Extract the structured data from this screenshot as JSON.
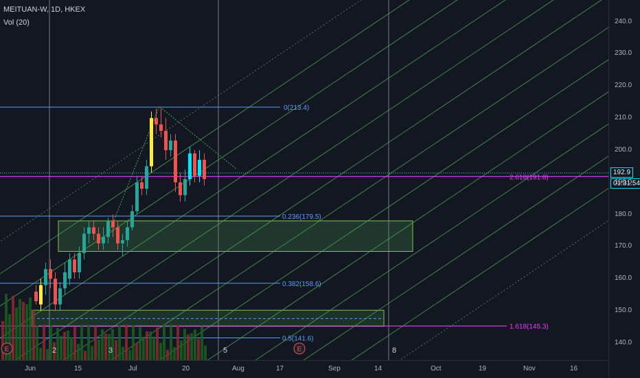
{
  "header": {
    "symbol": "MEITUAN-W, 1D, HKEX",
    "indicator": "Vol (20)"
  },
  "price_axis": {
    "ticks": [
      "240.0",
      "230.0",
      "220.0",
      "210.0",
      "200.0",
      "190.0",
      "180.0",
      "170.0",
      "160.0",
      "150.0",
      "140.0"
    ],
    "last_price": "192.9",
    "countdown": "01:31:54"
  },
  "time_axis": {
    "ticks": [
      "Jun",
      "15",
      "Jul",
      "20",
      "Aug",
      "17",
      "Sep",
      "14",
      "Oct",
      "19",
      "Nov",
      "16"
    ]
  },
  "fib_levels": [
    {
      "label": "0(213.4)",
      "color": "#5b9cf6"
    },
    {
      "label": "0.236(179.5)",
      "color": "#5b9cf6"
    },
    {
      "label": "0.382(158.6)",
      "color": "#5b9cf6"
    },
    {
      "label": "0.5(141.6)",
      "color": "#5b9cf6"
    },
    {
      "label": "2.618(191.8)",
      "color": "#e040fb"
    },
    {
      "label": "1.618(145.3)",
      "color": "#e040fb"
    }
  ],
  "wave_labels": [
    "2",
    "3",
    "5",
    "8"
  ],
  "event_markers": [
    "E",
    "E"
  ],
  "colors": {
    "up": "#26a69a",
    "down": "#ef5350",
    "accent_up": "#00e5ff",
    "accent_yellow": "#ffeb3b",
    "fib": "#5b9cf6",
    "ext": "#e040fb",
    "channel": "#4caf50"
  }
}
